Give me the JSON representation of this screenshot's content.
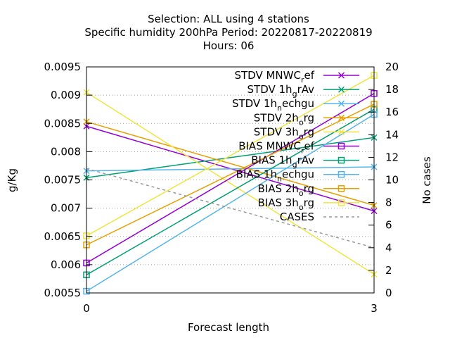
{
  "chart_data": {
    "type": "line",
    "title_lines": [
      "Selection: ALL using     4 stations",
      "Specific humidity 200hPa   Period: 20220817-20220819",
      "Hours:  06"
    ],
    "xlabel": "Forecast length",
    "ylabel": "g/Kg",
    "y2label": "No cases",
    "x_ticks": [
      "0",
      "3"
    ],
    "x": [
      0,
      3
    ],
    "xlim": [
      0,
      3
    ],
    "ylim": [
      0.0055,
      0.0095
    ],
    "y_ticks": [
      "0.0055",
      "0.006",
      "0.0065",
      "0.007",
      "0.0075",
      "0.008",
      "0.0085",
      "0.009",
      "0.0095"
    ],
    "y2lim": [
      0,
      20
    ],
    "y2_ticks": [
      "0",
      "2",
      "4",
      "6",
      "8",
      "10",
      "12",
      "14",
      "16",
      "18",
      "20"
    ],
    "legend_position": "top-right",
    "grid": "horizontal dotted",
    "series": [
      {
        "name": "STDV MNWC_ref",
        "color": "#9400d3",
        "marker": "x",
        "axis": "y1",
        "values": [
          0.00845,
          0.00695
        ]
      },
      {
        "name": "STDV 1h_grAv",
        "color": "#009e73",
        "marker": "x",
        "axis": "y1",
        "values": [
          0.00754,
          0.00825
        ]
      },
      {
        "name": "STDV 1h_nechgu",
        "color": "#56b4e9",
        "marker": "x",
        "axis": "y1",
        "values": [
          0.00766,
          0.00773
        ]
      },
      {
        "name": "STDV 2h_org",
        "color": "#e69f00",
        "marker": "x",
        "axis": "y1",
        "values": [
          0.00853,
          0.00705
        ]
      },
      {
        "name": "STDV 3h_org",
        "color": "#f0e442",
        "marker": "x",
        "axis": "y1",
        "values": [
          0.00905,
          0.00583
        ]
      },
      {
        "name": "BIAS MNWC_ref",
        "color": "#9400d3",
        "marker": "square",
        "axis": "y1",
        "values": [
          0.00603,
          0.00903
        ]
      },
      {
        "name": "BIAS 1h_grAv",
        "color": "#009e73",
        "marker": "square",
        "axis": "y1",
        "values": [
          0.00582,
          0.00875
        ]
      },
      {
        "name": "BIAS 1h_nechgu",
        "color": "#56b4e9",
        "marker": "square",
        "axis": "y1",
        "values": [
          0.00553,
          0.00866
        ]
      },
      {
        "name": "BIAS 2h_org",
        "color": "#e69f00",
        "marker": "square",
        "axis": "y1",
        "values": [
          0.00635,
          0.00884
        ]
      },
      {
        "name": "BIAS 3h_org",
        "color": "#f0e442",
        "marker": "square",
        "axis": "y1",
        "values": [
          0.00651,
          0.00935
        ]
      },
      {
        "name": "CASES",
        "color": "#999999",
        "marker": "none",
        "axis": "y2",
        "dashed": true,
        "values": [
          11,
          4
        ]
      }
    ],
    "legend_entries": [
      {
        "main": "STDV MNWC",
        "sub": "r",
        "tail": "ef"
      },
      {
        "main": "STDV 1h",
        "sub": "g",
        "tail": "rAv"
      },
      {
        "main": "STDV 1h",
        "sub": "n",
        "tail": "echgu"
      },
      {
        "main": "STDV 2h",
        "sub": "o",
        "tail": "rg"
      },
      {
        "main": "STDV 3h",
        "sub": "o",
        "tail": "rg"
      },
      {
        "main": "BIAS MNWC",
        "sub": "r",
        "tail": "ef"
      },
      {
        "main": "BIAS 1h",
        "sub": "g",
        "tail": "rAv"
      },
      {
        "main": "BIAS 1h",
        "sub": "n",
        "tail": "echgu"
      },
      {
        "main": "BIAS 2h",
        "sub": "o",
        "tail": "rg"
      },
      {
        "main": "BIAS 3h",
        "sub": "o",
        "tail": "rg"
      },
      {
        "main": "CASES",
        "sub": "",
        "tail": ""
      }
    ]
  }
}
